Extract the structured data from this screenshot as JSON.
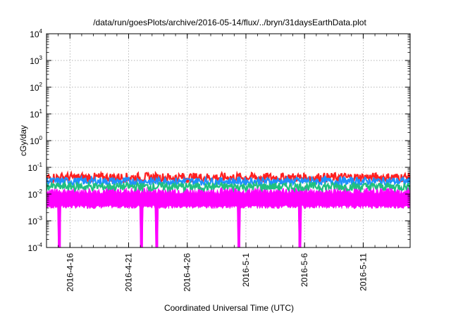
{
  "chart_data": {
    "type": "line",
    "title": "/data/run/goesPlots/archive/2016-05-14/flux/../bryn/31daysEarthData.plot",
    "xlabel": "Coordinated Universal Time (UTC)",
    "ylabel": "cGy/day",
    "yscale": "log",
    "ylim": [
      0.0001,
      10000
    ],
    "y_ticks": [
      {
        "base": "10",
        "exp": "-4",
        "value": 0.0001
      },
      {
        "base": "10",
        "exp": "-3",
        "value": 0.001
      },
      {
        "base": "10",
        "exp": "-2",
        "value": 0.01
      },
      {
        "base": "10",
        "exp": "-1",
        "value": 0.1
      },
      {
        "base": "10",
        "exp": "0",
        "value": 1
      },
      {
        "base": "10",
        "exp": "1",
        "value": 10
      },
      {
        "base": "10",
        "exp": "2",
        "value": 100
      },
      {
        "base": "10",
        "exp": "3",
        "value": 1000
      },
      {
        "base": "10",
        "exp": "4",
        "value": 10000
      }
    ],
    "xlim": [
      "2016-04-14",
      "2016-05-15"
    ],
    "x_tick_labels": [
      "2016-4-16",
      "2016-4-21",
      "2016-4-26",
      "2016-5-1",
      "2016-5-6",
      "2016-5-11"
    ],
    "x_tick_dates": [
      "2016-04-16",
      "2016-04-21",
      "2016-04-26",
      "2016-05-01",
      "2016-05-06",
      "2016-05-11"
    ],
    "grid": true,
    "series": [
      {
        "color": "#ff2020",
        "level": 0.042,
        "spread": 0.35,
        "peaks": [
          {
            "x": "2016-04-19",
            "y": 0.1
          },
          {
            "x": "2016-05-13",
            "y": 0.07
          }
        ]
      },
      {
        "color": "#1e90ff",
        "level": 0.03,
        "spread": 0.3,
        "peaks": [
          {
            "x": "2016-04-19",
            "y": 0.075
          }
        ]
      },
      {
        "color": "#20c080",
        "level": 0.019,
        "spread": 0.3,
        "peaks": []
      },
      {
        "color": "#ff00ff",
        "level_low": 0.0033,
        "level_high": 0.014,
        "dips": [
          {
            "x": "2016-04-15.1",
            "y": 0.0001
          },
          {
            "x": "2016-04-22.1",
            "y": 0.0001
          },
          {
            "x": "2016-04-23.4",
            "y": 0.0001
          },
          {
            "x": "2016-04-30.4",
            "y": 0.0001
          },
          {
            "x": "2016-05-05.6",
            "y": 0.0001
          }
        ]
      }
    ]
  }
}
